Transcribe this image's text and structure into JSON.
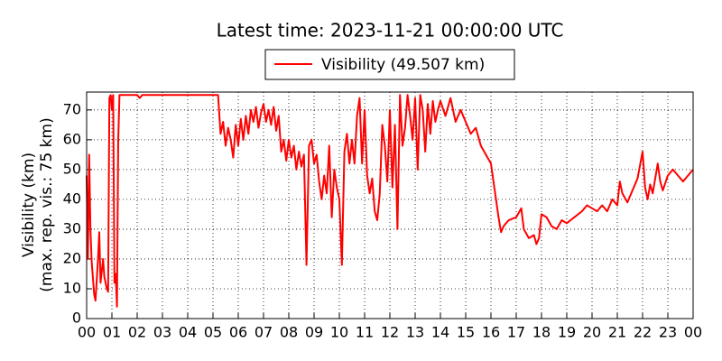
{
  "chart_data": {
    "type": "line",
    "title": "Latest time: 2023-11-21 00:00:00 UTC",
    "y_label": [
      "Visibility (km)",
      "(max. rep. vis.: 75 km)"
    ],
    "legend": "top",
    "grid": true,
    "xlim": [
      0,
      24
    ],
    "ylim": [
      0,
      76
    ],
    "xticks": [
      {
        "value": 0,
        "label": "00"
      },
      {
        "value": 1,
        "label": "01"
      },
      {
        "value": 2,
        "label": "02"
      },
      {
        "value": 3,
        "label": "03"
      },
      {
        "value": 4,
        "label": "04"
      },
      {
        "value": 5,
        "label": "05"
      },
      {
        "value": 6,
        "label": "06"
      },
      {
        "value": 7,
        "label": "07"
      },
      {
        "value": 8,
        "label": "08"
      },
      {
        "value": 9,
        "label": "09"
      },
      {
        "value": 10,
        "label": "10"
      },
      {
        "value": 11,
        "label": "11"
      },
      {
        "value": 12,
        "label": "12"
      },
      {
        "value": 13,
        "label": "13"
      },
      {
        "value": 14,
        "label": "14"
      },
      {
        "value": 15,
        "label": "15"
      },
      {
        "value": 16,
        "label": "16"
      },
      {
        "value": 17,
        "label": "17"
      },
      {
        "value": 18,
        "label": "18"
      },
      {
        "value": 19,
        "label": "19"
      },
      {
        "value": 20,
        "label": "20"
      },
      {
        "value": 21,
        "label": "21"
      },
      {
        "value": 22,
        "label": "22"
      },
      {
        "value": 23,
        "label": "23"
      },
      {
        "value": 24,
        "label": "00"
      }
    ],
    "yticks": [
      0,
      10,
      20,
      30,
      40,
      50,
      60,
      70
    ],
    "x": [
      0,
      0.05,
      0.1,
      0.15,
      0.2,
      0.3,
      0.35,
      0.45,
      0.5,
      0.55,
      0.65,
      0.7,
      0.8,
      0.85,
      0.9,
      0.95,
      1.0,
      1.05,
      1.1,
      1.15,
      1.2,
      1.25,
      1.3,
      1.5,
      2.0,
      2.1,
      2.2,
      3,
      4,
      5.0,
      5.2,
      5.3,
      5.4,
      5.5,
      5.6,
      5.7,
      5.8,
      5.9,
      6.0,
      6.1,
      6.2,
      6.3,
      6.4,
      6.5,
      6.6,
      6.7,
      6.8,
      6.9,
      7.0,
      7.1,
      7.2,
      7.3,
      7.4,
      7.5,
      7.6,
      7.7,
      7.8,
      7.9,
      8.0,
      8.1,
      8.2,
      8.3,
      8.4,
      8.5,
      8.6,
      8.7,
      8.8,
      8.9,
      9.0,
      9.1,
      9.2,
      9.3,
      9.4,
      9.5,
      9.6,
      9.7,
      9.8,
      9.9,
      10.0,
      10.1,
      10.2,
      10.3,
      10.4,
      10.5,
      10.6,
      10.7,
      10.8,
      10.9,
      11.0,
      11.1,
      11.2,
      11.3,
      11.4,
      11.5,
      11.6,
      11.7,
      11.8,
      11.9,
      12.0,
      12.1,
      12.2,
      12.3,
      12.4,
      12.5,
      12.6,
      12.7,
      12.8,
      12.9,
      13.0,
      13.1,
      13.2,
      13.3,
      13.4,
      13.5,
      13.6,
      13.7,
      13.8,
      13.9,
      14.0,
      14.2,
      14.4,
      14.6,
      14.8,
      15.0,
      15.2,
      15.4,
      15.6,
      15.8,
      16.0,
      16.1,
      16.2,
      16.3,
      16.4,
      16.5,
      16.7,
      17.0,
      17.2,
      17.3,
      17.5,
      17.7,
      17.8,
      17.9,
      18.0,
      18.2,
      18.4,
      18.6,
      18.8,
      19.0,
      19.3,
      19.6,
      19.8,
      20.0,
      20.2,
      20.4,
      20.6,
      20.8,
      21.0,
      21.1,
      21.2,
      21.4,
      21.6,
      21.8,
      22.0,
      22.1,
      22.2,
      22.3,
      22.4,
      22.6,
      22.7,
      22.8,
      23.0,
      23.2,
      23.4,
      23.6,
      23.8,
      24.0
    ],
    "series": [
      {
        "name": "Visibility (49.507 km)",
        "color": "#ff0000",
        "values": [
          48,
          20,
          55,
          30,
          19,
          8,
          6,
          20,
          29,
          12,
          20,
          14,
          10,
          9,
          74,
          75,
          70,
          75,
          12,
          15,
          4,
          60,
          75,
          75,
          75,
          74,
          75,
          75,
          75,
          75,
          75,
          62,
          66,
          58,
          64,
          60,
          54,
          65,
          58,
          67,
          60,
          68,
          62,
          70,
          66,
          71,
          64,
          69,
          72,
          66,
          70,
          65,
          71,
          63,
          68,
          56,
          60,
          53,
          60,
          54,
          58,
          50,
          56,
          51,
          55,
          18,
          58,
          60,
          52,
          55,
          46,
          40,
          48,
          42,
          58,
          34,
          50,
          44,
          40,
          18,
          56,
          62,
          52,
          60,
          52,
          68,
          74,
          52,
          70,
          48,
          42,
          47,
          36,
          33,
          42,
          65,
          58,
          46,
          70,
          44,
          65,
          30,
          75,
          58,
          64,
          75,
          68,
          60,
          74,
          50,
          75,
          70,
          56,
          72,
          62,
          73,
          66,
          70,
          73,
          68,
          74,
          66,
          70,
          66,
          62,
          64,
          58,
          55,
          52,
          46,
          40,
          34,
          29,
          31,
          33,
          34,
          37,
          30,
          27,
          28,
          25,
          27,
          35,
          34,
          31,
          30,
          33,
          32,
          34,
          36,
          38,
          37,
          36,
          38,
          36,
          40,
          38,
          46,
          42,
          39,
          43,
          47,
          56,
          44,
          40,
          45,
          42,
          52,
          46,
          43,
          48,
          50,
          48,
          46,
          48,
          50
        ]
      }
    ]
  }
}
